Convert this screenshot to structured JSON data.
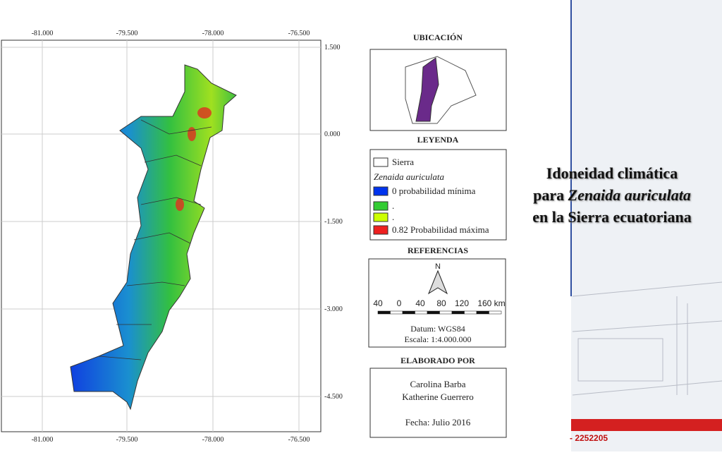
{
  "map": {
    "lon_labels": [
      "-81.000",
      "-79.500",
      "-78.000",
      "-76.500"
    ],
    "lat_labels": [
      "1.500",
      "0.000",
      "-1.500",
      "-3.000",
      "-4.500"
    ]
  },
  "panel": {
    "location_title": "UBICACIÓN",
    "legend_title": "LEYENDA",
    "legend_items": [
      {
        "label": "Sierra",
        "color": "#ffffff"
      },
      {
        "label": "Zenaida auriculata"
      },
      {
        "label": "0 probabilidad mínima",
        "color": "#0033ee"
      },
      {
        "label": ".",
        "color": "#33cc33"
      },
      {
        "label": ".",
        "color": "#ccff00"
      },
      {
        "label": "0.82 Probabilidad máxima",
        "color": "#ee2020"
      }
    ],
    "references_title": "REFERENCIAS",
    "north": "N",
    "scale_labels": [
      "40",
      "0",
      "40",
      "80",
      "120",
      "160 km"
    ],
    "datum": "Datum: WGS84",
    "scale": "Escala: 1:4.000.000",
    "author_title": "ELABORADO POR",
    "authors": [
      "Carolina Barba",
      "Katherine Guerrero"
    ],
    "date": "Fecha: Julio 2016"
  },
  "title": [
    "Idoneidad climática para ",
    "Zenaida auriculata",
    " en la Sierra ecuatoriana"
  ],
  "footer": "- 2252205"
}
